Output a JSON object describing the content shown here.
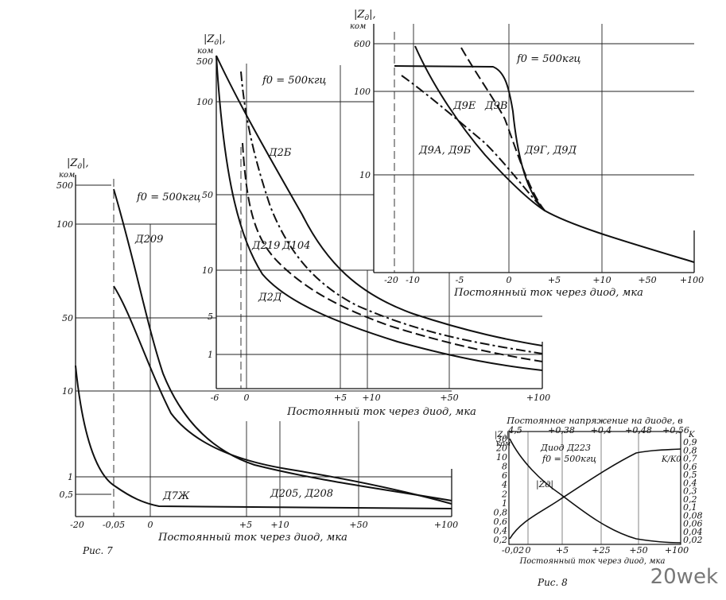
{
  "watermark": "20wek",
  "figure_captions": {
    "fig7": "Рис. 7",
    "fig8": "Рис. 8"
  },
  "chart_data": [
    {
      "type": "line",
      "panel": "Д209 / Д205 / Д7Ж",
      "ylabel": "|Zд|, ком",
      "xlabel": "Постоянный ток через диод, мка",
      "annotation": "f0 = 500кгц",
      "x_ticks": [
        "-20",
        "-0,05",
        "0",
        "+5",
        "+10",
        "+50",
        "+100"
      ],
      "y_ticks": [
        "500",
        "100",
        "50",
        "10",
        "1",
        "0,5"
      ],
      "series": [
        {
          "name": "Д209",
          "x": [
            "-0,05",
            "0",
            "+5",
            "+10",
            "+50",
            "+100"
          ],
          "y": [
            400,
            40,
            2.2,
            1.4,
            0.9,
            0.5
          ]
        },
        {
          "name": "Д205, Д208",
          "x": [
            "-0,05",
            "0",
            "+5",
            "+10",
            "+50",
            "+100"
          ],
          "y": [
            60,
            12,
            1.9,
            1.3,
            0.7,
            0.4
          ]
        },
        {
          "name": "Д7Ж",
          "x": [
            "-20",
            "-0,05",
            "0",
            "+5",
            "+10",
            "+50",
            "+100"
          ],
          "y": [
            20,
            1,
            0.35,
            0.33,
            0.32,
            0.3,
            0.3
          ]
        }
      ]
    },
    {
      "type": "line",
      "panel": "Д2Б / Д219 / Д104 / Д2Д",
      "ylabel": "|Zд|, ком",
      "xlabel": "Постоянный ток через диод, мка",
      "annotation": "f0 = 500кгц",
      "x_ticks": [
        "-6",
        "0",
        "+5",
        "+10",
        "+50",
        "+100"
      ],
      "y_ticks": [
        "500",
        "100",
        "50",
        "10",
        "5",
        "1"
      ],
      "series": [
        {
          "name": "Д2Б",
          "x": [
            "-6",
            "0",
            "+5",
            "+10",
            "+50",
            "+100"
          ],
          "y": [
            500,
            80,
            6,
            3.5,
            2,
            1.5
          ]
        },
        {
          "name": "Д219",
          "x": [
            "0",
            "+5",
            "+10",
            "+50",
            "+100"
          ],
          "y": [
            40,
            3.5,
            2.5,
            1.5,
            0.9
          ]
        },
        {
          "name": "Д104",
          "x": [
            "0",
            "+5",
            "+10",
            "+50",
            "+100"
          ],
          "y": [
            300,
            5,
            3,
            1.8,
            1.2
          ]
        },
        {
          "name": "Д2Д",
          "x": [
            "-6",
            "0",
            "+5",
            "+10",
            "+50",
            "+100"
          ],
          "y": [
            500,
            15,
            3,
            2,
            1,
            0.7
          ]
        }
      ]
    },
    {
      "type": "line",
      "panel": "Д9",
      "ylabel": "|Zд|, ком",
      "xlabel": "Постоянный ток через диод, мка",
      "annotation": "f0 = 500кгц",
      "x_ticks": [
        "-20",
        "-10",
        "-5",
        "0",
        "+5",
        "+10",
        "+50",
        "+100"
      ],
      "y_ticks": [
        "600",
        "100",
        "10"
      ],
      "series": [
        {
          "name": "Д9Е",
          "x": [
            "-20",
            "-10",
            "-5",
            "0",
            "+5",
            "+10",
            "+50",
            "+100"
          ],
          "y": [
            300,
            300,
            280,
            100,
            4,
            3,
            1.8,
            1.2
          ]
        },
        {
          "name": "Д9В",
          "x": [
            "-5",
            "0",
            "+5",
            "+10",
            "+50",
            "+100"
          ],
          "y": [
            500,
            20,
            4,
            3,
            1.8,
            1.2
          ]
        },
        {
          "name": "Д9А, Д9Б",
          "x": [
            "-10",
            "-5",
            "0",
            "+5",
            "+10",
            "+50",
            "+100"
          ],
          "y": [
            200,
            60,
            10,
            4,
            3,
            1.8,
            1.2
          ]
        },
        {
          "name": "Д9Г, Д9Д",
          "x": [
            "-10",
            "-5",
            "0",
            "+5",
            "+10",
            "+50",
            "+100"
          ],
          "y": [
            500,
            80,
            12,
            4,
            3,
            1.8,
            1.2
          ]
        }
      ]
    },
    {
      "type": "line",
      "panel": "Д223",
      "title": "Диод Д223",
      "annotation": "f0 = 500кгц",
      "ylabel": "|Zд|, ком",
      "y2label": "K, K/K0",
      "xlabel": "Постоянный ток через диод, мка",
      "x2label": "Постоянное напряжение на диоде, в",
      "x_ticks": [
        "-0,02",
        "0",
        "+5",
        "+25",
        "+50",
        "+100"
      ],
      "x2_ticks": [
        "4,5",
        "+0,38",
        "+0,4",
        "+0,48",
        "+0,56"
      ],
      "y_ticks": [
        "30",
        "20",
        "10",
        "8",
        "6",
        "4",
        "2",
        "1",
        "0,8",
        "0,6",
        "0,4",
        "0,2"
      ],
      "y2_ticks": [
        "0,9",
        "0,8",
        "0,7",
        "0,6",
        "0,5",
        "0,4",
        "0,3",
        "0,2",
        "0,1",
        "0,08",
        "0,06",
        "0,04",
        "0,02"
      ],
      "series": [
        {
          "name": "|Zд|",
          "x": [
            "-0,02",
            "0",
            "+5",
            "+25",
            "+50",
            "+100"
          ],
          "y": [
            25,
            10,
            2,
            0.5,
            0.22,
            0.2
          ]
        },
        {
          "name": "K/K0",
          "x": [
            "-0,02",
            "0",
            "+5",
            "+25",
            "+50",
            "+100"
          ],
          "y": [
            0.02,
            0.04,
            0.1,
            0.3,
            0.7,
            0.75
          ]
        }
      ]
    }
  ]
}
